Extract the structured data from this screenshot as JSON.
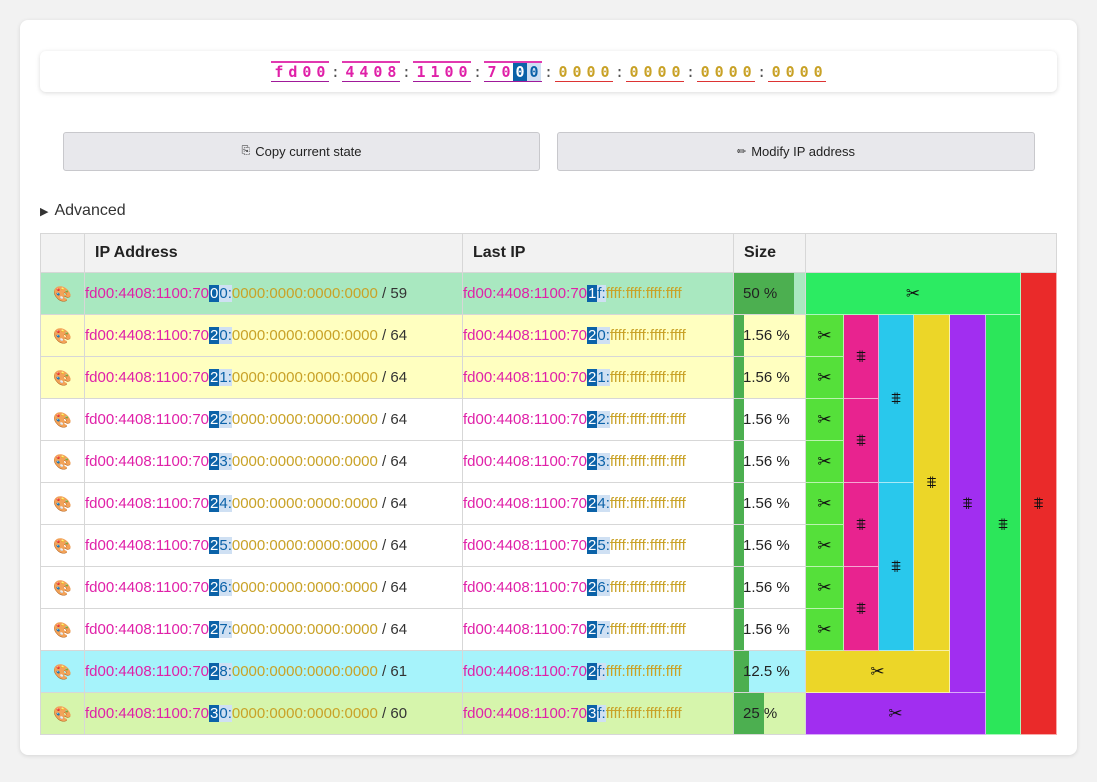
{
  "ip_display": {
    "groups": [
      {
        "digits": [
          "f",
          "d",
          "0",
          "0"
        ],
        "colors": [
          "p",
          "p",
          "p",
          "p"
        ],
        "style": "g-pink"
      },
      {
        "digits": [
          "4",
          "4",
          "0",
          "8"
        ],
        "colors": [
          "p",
          "p",
          "p",
          "p"
        ],
        "style": "g-pink"
      },
      {
        "digits": [
          "1",
          "1",
          "0",
          "0"
        ],
        "colors": [
          "p",
          "p",
          "p",
          "p"
        ],
        "style": "g-pink"
      },
      {
        "digits": [
          "7",
          "0",
          "0",
          "0"
        ],
        "colors": [
          "p",
          "p",
          "sel",
          "sel2"
        ],
        "style": "g-pink"
      },
      {
        "digits": [
          "0",
          "0",
          "0",
          "0"
        ],
        "colors": [
          "o",
          "o",
          "o",
          "o"
        ],
        "style": "g-ol"
      },
      {
        "digits": [
          "0",
          "0",
          "0",
          "0"
        ],
        "colors": [
          "o",
          "o",
          "o",
          "o"
        ],
        "style": "g-ol"
      },
      {
        "digits": [
          "0",
          "0",
          "0",
          "0"
        ],
        "colors": [
          "o",
          "o",
          "o",
          "o"
        ],
        "style": "g-ol"
      },
      {
        "digits": [
          "0",
          "0",
          "0",
          "0"
        ],
        "colors": [
          "o",
          "o",
          "o",
          "o"
        ],
        "style": "g-ol"
      }
    ]
  },
  "buttons": {
    "copy": {
      "icon": "⎘",
      "label": "Copy current state"
    },
    "modify": {
      "icon": "✏",
      "label": "Modify IP address"
    }
  },
  "advanced": {
    "label": "Advanced"
  },
  "table": {
    "headers": {
      "ip": "IP Address",
      "last": "Last IP",
      "size": "Size",
      "blocks": ""
    },
    "rows": [
      {
        "bg": "#a9e8c0",
        "ip": {
          "pre": "fd00:4408:1100:70",
          "hex": "0",
          "hl": "0:",
          "rest": "0000:0000:0000:0000",
          "prefix": "/ 59"
        },
        "last": {
          "pre": "fd00:4408:1100:70",
          "hex": "1",
          "hl": "f:",
          "rest": "ffff:ffff:ffff:ffff"
        },
        "size": "50 %",
        "fill": 0.5
      },
      {
        "bg": "#ffffc0",
        "ip": {
          "pre": "fd00:4408:1100:70",
          "hex": "2",
          "hl": "0:",
          "rest": "0000:0000:0000:0000",
          "prefix": "/ 64"
        },
        "last": {
          "pre": "fd00:4408:1100:70",
          "hex": "2",
          "hl": "0:",
          "rest": "ffff:ffff:ffff:ffff"
        },
        "size": "1.56 %",
        "fill": 0.0156
      },
      {
        "bg": "#ffffc0",
        "ip": {
          "pre": "fd00:4408:1100:70",
          "hex": "2",
          "hl": "1:",
          "rest": "0000:0000:0000:0000",
          "prefix": "/ 64"
        },
        "last": {
          "pre": "fd00:4408:1100:70",
          "hex": "2",
          "hl": "1:",
          "rest": "ffff:ffff:ffff:ffff"
        },
        "size": "1.56 %",
        "fill": 0.0156
      },
      {
        "bg": "#ffffff",
        "ip": {
          "pre": "fd00:4408:1100:70",
          "hex": "2",
          "hl": "2:",
          "rest": "0000:0000:0000:0000",
          "prefix": "/ 64"
        },
        "last": {
          "pre": "fd00:4408:1100:70",
          "hex": "2",
          "hl": "2:",
          "rest": "ffff:ffff:ffff:ffff"
        },
        "size": "1.56 %",
        "fill": 0.0156
      },
      {
        "bg": "#ffffff",
        "ip": {
          "pre": "fd00:4408:1100:70",
          "hex": "2",
          "hl": "3:",
          "rest": "0000:0000:0000:0000",
          "prefix": "/ 64"
        },
        "last": {
          "pre": "fd00:4408:1100:70",
          "hex": "2",
          "hl": "3:",
          "rest": "ffff:ffff:ffff:ffff"
        },
        "size": "1.56 %",
        "fill": 0.0156
      },
      {
        "bg": "#ffffff",
        "ip": {
          "pre": "fd00:4408:1100:70",
          "hex": "2",
          "hl": "4:",
          "rest": "0000:0000:0000:0000",
          "prefix": "/ 64"
        },
        "last": {
          "pre": "fd00:4408:1100:70",
          "hex": "2",
          "hl": "4:",
          "rest": "ffff:ffff:ffff:ffff"
        },
        "size": "1.56 %",
        "fill": 0.0156
      },
      {
        "bg": "#ffffff",
        "ip": {
          "pre": "fd00:4408:1100:70",
          "hex": "2",
          "hl": "5:",
          "rest": "0000:0000:0000:0000",
          "prefix": "/ 64"
        },
        "last": {
          "pre": "fd00:4408:1100:70",
          "hex": "2",
          "hl": "5:",
          "rest": "ffff:ffff:ffff:ffff"
        },
        "size": "1.56 %",
        "fill": 0.0156
      },
      {
        "bg": "#ffffff",
        "ip": {
          "pre": "fd00:4408:1100:70",
          "hex": "2",
          "hl": "6:",
          "rest": "0000:0000:0000:0000",
          "prefix": "/ 64"
        },
        "last": {
          "pre": "fd00:4408:1100:70",
          "hex": "2",
          "hl": "6:",
          "rest": "ffff:ffff:ffff:ffff"
        },
        "size": "1.56 %",
        "fill": 0.0156
      },
      {
        "bg": "#ffffff",
        "ip": {
          "pre": "fd00:4408:1100:70",
          "hex": "2",
          "hl": "7:",
          "rest": "0000:0000:0000:0000",
          "prefix": "/ 64"
        },
        "last": {
          "pre": "fd00:4408:1100:70",
          "hex": "2",
          "hl": "7:",
          "rest": "ffff:ffff:ffff:ffff"
        },
        "size": "1.56 %",
        "fill": 0.0156
      },
      {
        "bg": "#a6f3fb",
        "ip": {
          "pre": "fd00:4408:1100:70",
          "hex": "2",
          "hl": "8:",
          "rest": "0000:0000:0000:0000",
          "prefix": "/ 61"
        },
        "last": {
          "pre": "fd00:4408:1100:70",
          "hex": "2",
          "hl": "f:",
          "rest": "ffff:ffff:ffff:ffff"
        },
        "size": "12.5 %",
        "fill": 0.125
      },
      {
        "bg": "#d6f5ac",
        "ip": {
          "pre": "fd00:4408:1100:70",
          "hex": "3",
          "hl": "0:",
          "rest": "0000:0000:0000:0000",
          "prefix": "/ 60"
        },
        "last": {
          "pre": "fd00:4408:1100:70",
          "hex": "3",
          "hl": "f:",
          "rest": "ffff:ffff:ffff:ffff"
        },
        "size": "25 %",
        "fill": 0.25
      }
    ]
  },
  "block_colors": {
    "green_bright": "#2ceb62",
    "green_lime": "#55e03a",
    "pink": "#e8238f",
    "cyan": "#29c8ec",
    "yellow": "#ecd628",
    "purple": "#a12ef0",
    "green_mid": "#2ce65a",
    "red": "#ea2a2a"
  },
  "icons": {
    "split": "✂",
    "merge": "⩨",
    "palette": "🎨"
  }
}
